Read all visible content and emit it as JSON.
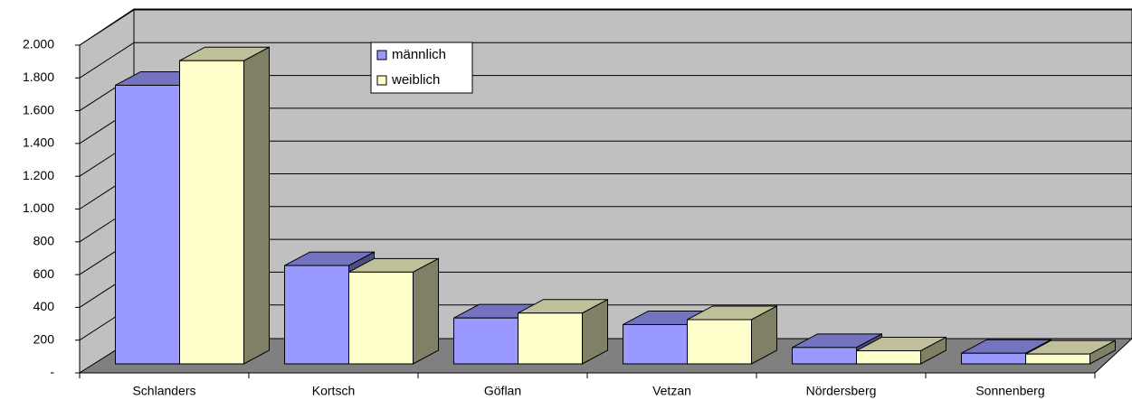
{
  "chart_data": {
    "type": "bar",
    "categories": [
      "Schlanders",
      "Kortsch",
      "Göflan",
      "Vetzan",
      "Nördersberg",
      "Sonnenberg"
    ],
    "series": [
      {
        "name": "männlich",
        "color": "#9999ff",
        "values": [
          1700,
          600,
          280,
          240,
          100,
          65
        ]
      },
      {
        "name": "weiblich",
        "color": "#ffffcc",
        "values": [
          1850,
          560,
          310,
          270,
          80,
          60
        ]
      }
    ],
    "ylim": [
      0,
      2000
    ],
    "yticks": [
      {
        "value": 0,
        "label": "-"
      },
      200,
      400,
      600,
      800,
      {
        "value": 1000,
        "label": "1.000"
      },
      {
        "value": 1200,
        "label": "1.200"
      },
      {
        "value": 1400,
        "label": "1.400"
      },
      {
        "value": 1600,
        "label": "1.600"
      },
      {
        "value": 1800,
        "label": "1.800"
      },
      {
        "value": 2000,
        "label": "2.000"
      }
    ],
    "grid": true
  }
}
